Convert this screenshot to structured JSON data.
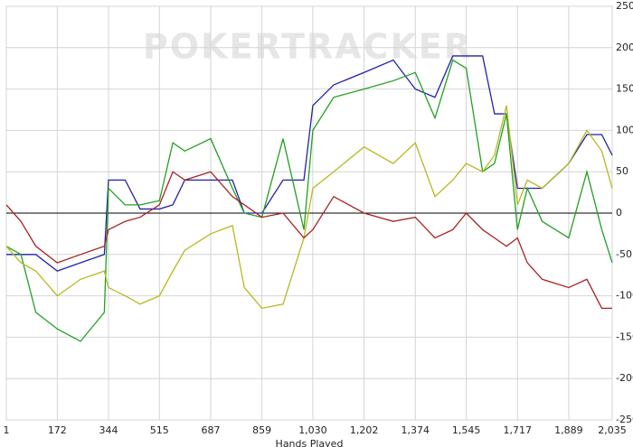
{
  "chart_data": {
    "type": "line",
    "watermark": "POKERTRACKER",
    "x_label": "Hands Played",
    "x": [
      1,
      50,
      100,
      172,
      250,
      330,
      344,
      400,
      450,
      515,
      560,
      600,
      687,
      760,
      800,
      859,
      930,
      1000,
      1030,
      1100,
      1202,
      1300,
      1374,
      1440,
      1500,
      1545,
      1600,
      1640,
      1680,
      1717,
      1750,
      1800,
      1889,
      1950,
      2000,
      2035
    ],
    "series": [
      {
        "color": "#2222aa",
        "values": [
          -50,
          -50,
          -50,
          -70,
          -60,
          -50,
          40,
          40,
          5,
          5,
          10,
          40,
          40,
          40,
          0,
          0,
          40,
          40,
          130,
          155,
          170,
          185,
          150,
          140,
          190,
          190,
          190,
          120,
          120,
          30,
          30,
          30,
          60,
          95,
          95,
          70
        ]
      },
      {
        "color": "#22a022",
        "values": [
          -40,
          -50,
          -120,
          -140,
          -155,
          -120,
          30,
          10,
          10,
          15,
          85,
          75,
          90,
          30,
          0,
          -5,
          90,
          -20,
          100,
          140,
          150,
          160,
          170,
          115,
          185,
          175,
          50,
          60,
          120,
          -20,
          30,
          -10,
          -30,
          50,
          -20,
          -60
        ]
      },
      {
        "color": "#b8b820",
        "values": [
          -40,
          -60,
          -70,
          -100,
          -80,
          -70,
          -90,
          -100,
          -110,
          -100,
          -70,
          -45,
          -25,
          -15,
          -90,
          -115,
          -110,
          -30,
          30,
          50,
          80,
          60,
          85,
          20,
          40,
          60,
          50,
          70,
          130,
          10,
          40,
          30,
          60,
          100,
          75,
          30
        ]
      },
      {
        "color": "#aa2222",
        "values": [
          10,
          -10,
          -40,
          -60,
          -50,
          -40,
          -20,
          -10,
          -5,
          10,
          50,
          40,
          50,
          20,
          10,
          -5,
          0,
          -30,
          -20,
          20,
          0,
          -10,
          -5,
          -30,
          -20,
          0,
          -20,
          -30,
          -40,
          -30,
          -60,
          -80,
          -90,
          -80,
          -115,
          -115
        ]
      }
    ],
    "xlim": [
      1,
      2035
    ],
    "xticks": [
      1,
      172,
      344,
      515,
      687,
      859,
      {
        "value": 1030,
        "label": "1,030"
      },
      {
        "value": 1202,
        "label": "1,202"
      },
      {
        "value": 1374,
        "label": "1,374"
      },
      {
        "value": 1545,
        "label": "1,545"
      },
      {
        "value": 1717,
        "label": "1,717"
      },
      {
        "value": 1889,
        "label": "1,889"
      },
      {
        "value": 2035,
        "label": "2,035"
      }
    ],
    "ylim": [
      -250,
      250
    ],
    "yticks": [
      -250,
      -200,
      -150,
      -100,
      -50,
      0,
      50,
      100,
      150,
      200,
      250
    ],
    "grid": true
  }
}
